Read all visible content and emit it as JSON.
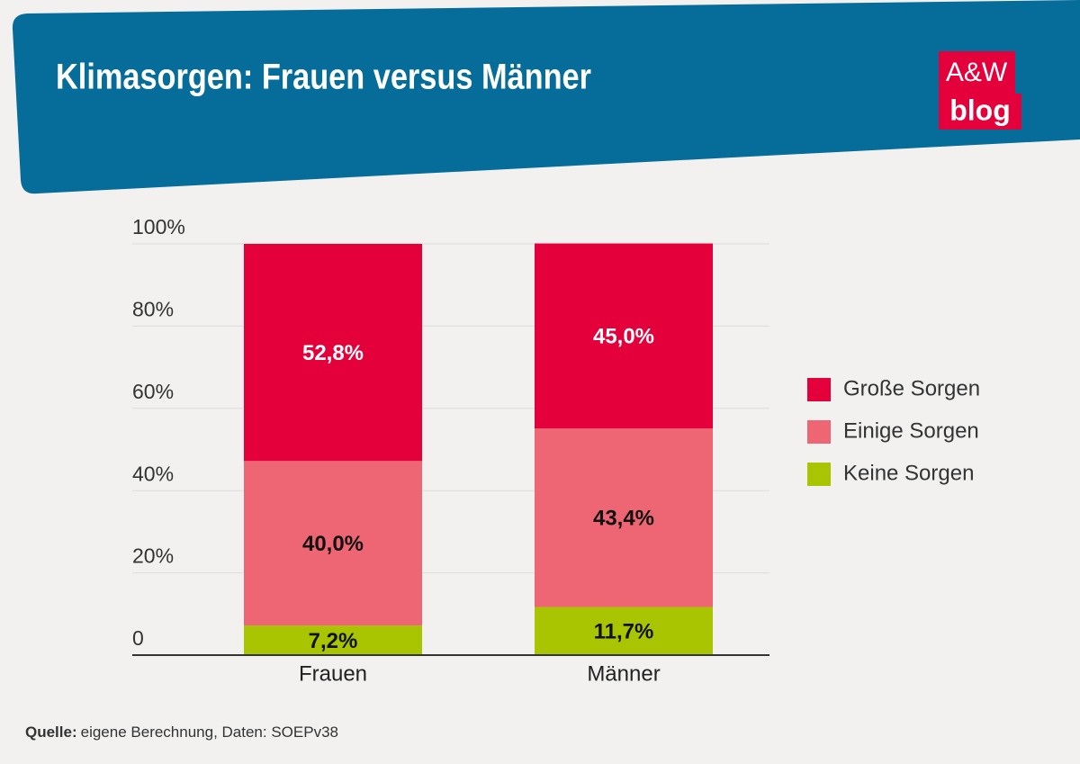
{
  "logo": {
    "top": "A&W",
    "bottom": "blog"
  },
  "chart_data": {
    "type": "stacked-bar",
    "title": "Klimasorgen: Frauen versus Männer",
    "categories": [
      "Frauen",
      "Männer"
    ],
    "series": [
      {
        "name": "Keine Sorgen",
        "color": "#a9c400",
        "values": [
          7.2,
          11.7
        ],
        "value_labels": [
          "7,2%",
          "11,7%"
        ]
      },
      {
        "name": "Einige Sorgen",
        "color": "#ee6673",
        "values": [
          40.0,
          43.4
        ],
        "value_labels": [
          "40,0%",
          "43,4%"
        ]
      },
      {
        "name": "Große Sorgen",
        "color": "#e4003a",
        "values": [
          52.8,
          45.0
        ],
        "value_labels": [
          "52,8%",
          "45,0%"
        ]
      }
    ],
    "ylim": [
      0,
      100
    ],
    "yticks": [
      0,
      {
        "value": 20,
        "label": "20%"
      },
      {
        "value": 40,
        "label": "40%"
      },
      {
        "value": 60,
        "label": "60%"
      },
      {
        "value": 80,
        "label": "80%"
      },
      {
        "value": 100,
        "label": "100%"
      }
    ],
    "grid": true,
    "legend": "right",
    "source": {
      "label": "Quelle:",
      "text": "eigene Berechnung, Daten: SOEPv38"
    }
  }
}
